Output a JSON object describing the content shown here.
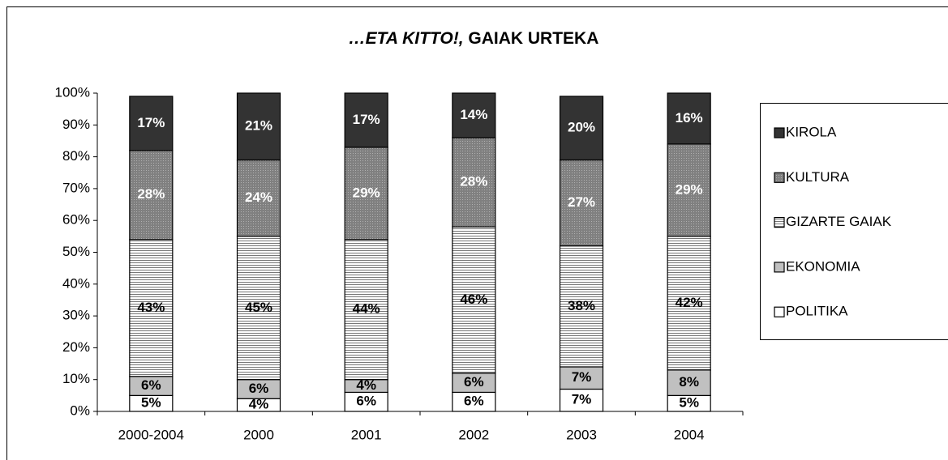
{
  "chart_data": {
    "type": "stacked_bar",
    "title": [
      "…ETA KITTO!,",
      "GAIAK URTEKA"
    ],
    "categories": [
      "2000-2004",
      "2000",
      "2001",
      "2002",
      "2003",
      "2004"
    ],
    "series": [
      {
        "name": "POLITIKA",
        "color": "#ffffff",
        "values": [
          5,
          4,
          6,
          6,
          7,
          5
        ],
        "value_labels": [
          "5%",
          "4%",
          "6%",
          "6%",
          "7%",
          "5%"
        ]
      },
      {
        "name": "EKONOMIA",
        "color": "#c0c0c0",
        "values": [
          6,
          6,
          4,
          6,
          7,
          8
        ],
        "value_labels": [
          "6%",
          "6%",
          "4%",
          "6%",
          "7%",
          "8%"
        ]
      },
      {
        "name": "GIZARTE GAIAK",
        "color": "#ffffff",
        "pattern": "horizontal-lines",
        "values": [
          43,
          45,
          44,
          46,
          38,
          42
        ],
        "value_labels": [
          "43%",
          "45%",
          "44%",
          "46%",
          "38%",
          "42%"
        ]
      },
      {
        "name": "KULTURA",
        "color": "#808080",
        "pattern": "dots",
        "values": [
          28,
          24,
          29,
          28,
          27,
          29
        ],
        "value_labels": [
          "28%",
          "24%",
          "29%",
          "28%",
          "27%",
          "29%"
        ]
      },
      {
        "name": "KIROLA",
        "color": "#333333",
        "values": [
          17,
          21,
          17,
          14,
          20,
          16
        ],
        "value_labels": [
          "17%",
          "21%",
          "17%",
          "14%",
          "20%",
          "16%"
        ]
      }
    ],
    "ylim": [
      0,
      100
    ],
    "yticks": [
      {
        "value": 0,
        "label": "0%"
      },
      {
        "value": 10,
        "label": "10%"
      },
      {
        "value": 20,
        "label": "20%"
      },
      {
        "value": 30,
        "label": "30%"
      },
      {
        "value": 40,
        "label": "40%"
      },
      {
        "value": 50,
        "label": "50%"
      },
      {
        "value": 60,
        "label": "60%"
      },
      {
        "value": 70,
        "label": "70%"
      },
      {
        "value": 80,
        "label": "80%"
      },
      {
        "value": 90,
        "label": "90%"
      },
      {
        "value": 100,
        "label": "100%"
      }
    ],
    "legend": "right"
  }
}
